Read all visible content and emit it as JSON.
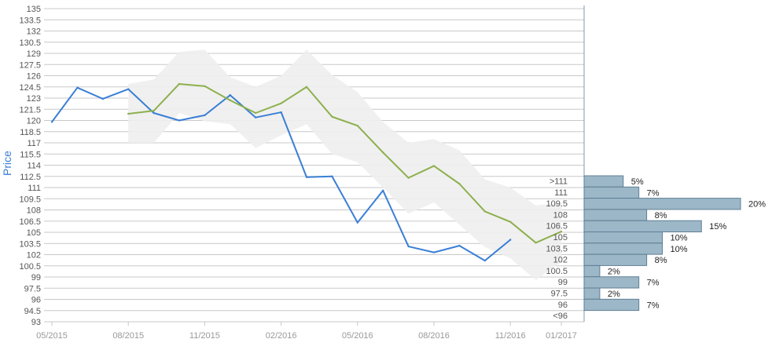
{
  "chart_data": [
    {
      "type": "line",
      "ylabel": "Price",
      "xlabel": "",
      "title": "",
      "ylim": [
        93,
        135
      ],
      "y_ticks": [
        "135",
        "133.5",
        "132",
        "130.5",
        "129",
        "127.5",
        "126",
        "124.5",
        "123",
        "121.5",
        "120",
        "118.5",
        "117",
        "115.5",
        "114",
        "112.5",
        "111",
        "109.5",
        "108",
        "106.5",
        "105",
        "103.5",
        "102",
        "100.5",
        "99",
        "97.5",
        "96",
        "94.5",
        "93"
      ],
      "x_tick_labels": [
        "05/2015",
        "08/2015",
        "11/2015",
        "02/2016",
        "05/2016",
        "08/2016",
        "11/2016",
        "01/2017"
      ],
      "grid": true,
      "series": [
        {
          "role": "price",
          "color": "#3a7fd5",
          "x": [
            "2015-05",
            "2015-06",
            "2015-07",
            "2015-08",
            "2015-09",
            "2015-10",
            "2015-11",
            "2015-12",
            "2016-01",
            "2016-02",
            "2016-03",
            "2016-04",
            "2016-05",
            "2016-06",
            "2016-07",
            "2016-08",
            "2016-09",
            "2016-10",
            "2016-11"
          ],
          "values": [
            119.8,
            124.4,
            122.9,
            124.2,
            121.0,
            120.0,
            120.7,
            123.4,
            120.4,
            121.1,
            112.4,
            112.5,
            106.3,
            110.6,
            103.1,
            102.3,
            103.2,
            101.2,
            104.0
          ]
        },
        {
          "role": "trend",
          "color": "#8db04d",
          "x": [
            "2015-08",
            "2015-09",
            "2015-10",
            "2015-11",
            "2015-12",
            "2016-01",
            "2016-02",
            "2016-03",
            "2016-04",
            "2016-05",
            "2016-06",
            "2016-07",
            "2016-08",
            "2016-09",
            "2016-10",
            "2016-11",
            "2016-12",
            "2017-01"
          ],
          "values": [
            120.9,
            121.3,
            124.9,
            124.6,
            122.7,
            121.0,
            122.3,
            124.5,
            120.5,
            119.3,
            115.7,
            112.3,
            113.9,
            111.5,
            107.8,
            106.4,
            103.6,
            105.1
          ]
        }
      ],
      "band": {
        "color": "#eeeeee",
        "x": [
          "2015-08",
          "2015-09",
          "2015-10",
          "2015-11",
          "2015-12",
          "2016-01",
          "2016-02",
          "2016-03",
          "2016-04",
          "2016-05",
          "2016-06",
          "2016-07",
          "2016-08",
          "2016-09",
          "2016-10",
          "2016-11",
          "2016-12",
          "2017-01"
        ],
        "upper": [
          124.9,
          125.5,
          129.2,
          129.5,
          125.8,
          124.5,
          126.0,
          129.5,
          126.1,
          123.8,
          119.8,
          117.0,
          117.5,
          116.0,
          112.1,
          111.0,
          108.6,
          109.0
        ],
        "lower": [
          117.0,
          117.0,
          121.0,
          119.9,
          119.5,
          116.3,
          118.0,
          119.5,
          115.5,
          114.4,
          111.0,
          107.5,
          109.0,
          106.0,
          103.0,
          101.5,
          98.6,
          101.0
        ]
      }
    },
    {
      "type": "bar",
      "orientation": "horizontal",
      "color": "#9cb7c7",
      "categories": [
        ">111",
        "111",
        "109.5",
        "108",
        "106.5",
        "105",
        "103.5",
        "102",
        "100.5",
        "99",
        "97.5",
        "96",
        "<96"
      ],
      "values": [
        5,
        7,
        20,
        8,
        15,
        10,
        10,
        8,
        2,
        7,
        2,
        7,
        0
      ],
      "value_labels": [
        "5%",
        "7%",
        "20%",
        "8%",
        "15%",
        "10%",
        "10%",
        "8%",
        "2%",
        "7%",
        "2%",
        "7%",
        ""
      ]
    }
  ]
}
